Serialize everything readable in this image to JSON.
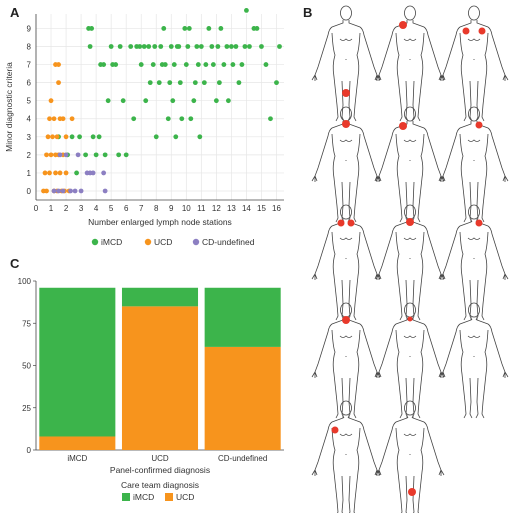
{
  "panels": {
    "a": "A",
    "b": "B",
    "c": "C"
  },
  "colors": {
    "imcd": "#3cb44b",
    "ucd": "#f7941d",
    "cd_undefined": "#8c7fc2",
    "body_outline": "#444444",
    "lesion": "#e8392b"
  },
  "chart_data": [
    {
      "panel": "A",
      "type": "scatter",
      "xlabel": "Number enlarged lymph node stations",
      "ylabel": "Minor diagnostic criteria",
      "xlim": [
        0,
        16.5
      ],
      "ylim": [
        -0.5,
        9.8
      ],
      "xticks": [
        "0",
        "1",
        "2",
        "3",
        "4",
        "5",
        "6",
        "7",
        "8",
        "9",
        "10",
        "11",
        "12",
        "13",
        "14",
        "15",
        "16"
      ],
      "yticks": [
        "0",
        "1",
        "2",
        "3",
        "4",
        "5",
        "6",
        "7",
        "8",
        "9"
      ],
      "grid": true,
      "legend_position": "bottom",
      "series": [
        {
          "name": "iMCD",
          "color": "#3cb44b",
          "points": [
            [
              1.5,
              3
            ],
            [
              2.1,
              2
            ],
            [
              2.4,
              3
            ],
            [
              2.7,
              1
            ],
            [
              2.9,
              3
            ],
            [
              3.3,
              2
            ],
            [
              3.5,
              9
            ],
            [
              3.7,
              9
            ],
            [
              3.6,
              8
            ],
            [
              3.8,
              3
            ],
            [
              4.0,
              2
            ],
            [
              4.2,
              3
            ],
            [
              4.3,
              7
            ],
            [
              4.5,
              7
            ],
            [
              4.6,
              2
            ],
            [
              4.8,
              5
            ],
            [
              5.0,
              8
            ],
            [
              5.1,
              7
            ],
            [
              5.3,
              7
            ],
            [
              5.5,
              2
            ],
            [
              5.6,
              8
            ],
            [
              5.8,
              5
            ],
            [
              6.0,
              2
            ],
            [
              6.3,
              8
            ],
            [
              6.5,
              4
            ],
            [
              6.7,
              8
            ],
            [
              6.9,
              8
            ],
            [
              7.0,
              7
            ],
            [
              7.2,
              8
            ],
            [
              7.3,
              5
            ],
            [
              7.5,
              8
            ],
            [
              7.6,
              6
            ],
            [
              7.8,
              7
            ],
            [
              7.9,
              8
            ],
            [
              8.0,
              3
            ],
            [
              8.2,
              6
            ],
            [
              8.3,
              8
            ],
            [
              8.4,
              7
            ],
            [
              8.5,
              9
            ],
            [
              8.6,
              7
            ],
            [
              8.8,
              4
            ],
            [
              8.9,
              6
            ],
            [
              9.0,
              8
            ],
            [
              9.1,
              5
            ],
            [
              9.2,
              7
            ],
            [
              9.3,
              3
            ],
            [
              9.4,
              8
            ],
            [
              9.5,
              8
            ],
            [
              9.6,
              6
            ],
            [
              9.7,
              4
            ],
            [
              9.9,
              9
            ],
            [
              10.0,
              7
            ],
            [
              10.1,
              8
            ],
            [
              10.2,
              9
            ],
            [
              10.3,
              4
            ],
            [
              10.5,
              5
            ],
            [
              10.6,
              6
            ],
            [
              10.7,
              8
            ],
            [
              10.8,
              7
            ],
            [
              10.9,
              3
            ],
            [
              11.0,
              8
            ],
            [
              11.2,
              6
            ],
            [
              11.3,
              7
            ],
            [
              11.5,
              9
            ],
            [
              11.7,
              8
            ],
            [
              11.8,
              7
            ],
            [
              12.0,
              5
            ],
            [
              12.1,
              8
            ],
            [
              12.2,
              6
            ],
            [
              12.3,
              9
            ],
            [
              12.5,
              7
            ],
            [
              12.7,
              8
            ],
            [
              12.8,
              5
            ],
            [
              13.0,
              8
            ],
            [
              13.1,
              7
            ],
            [
              13.3,
              8
            ],
            [
              13.5,
              6
            ],
            [
              13.7,
              7
            ],
            [
              13.9,
              8
            ],
            [
              14.0,
              10
            ],
            [
              14.2,
              8
            ],
            [
              14.5,
              9
            ],
            [
              14.7,
              9
            ],
            [
              15.0,
              8
            ],
            [
              15.3,
              7
            ],
            [
              15.6,
              4
            ],
            [
              16.0,
              6
            ],
            [
              16.2,
              8
            ]
          ]
        },
        {
          "name": "UCD",
          "color": "#f7941d",
          "points": [
            [
              0.5,
              0
            ],
            [
              0.6,
              1
            ],
            [
              0.7,
              2
            ],
            [
              0.8,
              3
            ],
            [
              0.9,
              4
            ],
            [
              0.7,
              0
            ],
            [
              0.9,
              1
            ],
            [
              1.0,
              2
            ],
            [
              1.0,
              5
            ],
            [
              1.1,
              3
            ],
            [
              1.2,
              0
            ],
            [
              1.2,
              4
            ],
            [
              1.3,
              1
            ],
            [
              1.3,
              2
            ],
            [
              1.3,
              7
            ],
            [
              1.4,
              0
            ],
            [
              1.4,
              3
            ],
            [
              1.5,
              6
            ],
            [
              1.5,
              2
            ],
            [
              1.5,
              7
            ],
            [
              1.6,
              4
            ],
            [
              1.6,
              1
            ],
            [
              1.7,
              0
            ],
            [
              1.8,
              4
            ],
            [
              1.8,
              2
            ],
            [
              1.9,
              0
            ],
            [
              2.0,
              1
            ],
            [
              2.0,
              3
            ],
            [
              2.2,
              0
            ],
            [
              2.4,
              4
            ]
          ]
        },
        {
          "name": "CD-undefined",
          "color": "#8c7fc2",
          "points": [
            [
              1.2,
              0
            ],
            [
              1.5,
              0
            ],
            [
              1.6,
              2
            ],
            [
              1.8,
              0
            ],
            [
              2.0,
              2
            ],
            [
              2.3,
              0
            ],
            [
              2.6,
              0
            ],
            [
              2.8,
              2
            ],
            [
              3.0,
              0
            ],
            [
              3.4,
              1
            ],
            [
              3.6,
              1
            ],
            [
              3.8,
              1
            ],
            [
              4.5,
              1
            ],
            [
              4.6,
              0
            ]
          ]
        }
      ],
      "legend": [
        "iMCD",
        "UCD",
        "CD-undefined"
      ]
    },
    {
      "panel": "C",
      "type": "bar",
      "stacked": true,
      "xlabel": "Panel-confirmed diagnosis",
      "ylabel": "",
      "ylim": [
        0,
        100
      ],
      "yticks": [
        "0",
        "25",
        "50",
        "75",
        "100"
      ],
      "categories": [
        "iMCD",
        "UCD",
        "CD-undefined"
      ],
      "series": [
        {
          "name": "UCD",
          "color": "#f7941d",
          "values": [
            8,
            85,
            61
          ]
        },
        {
          "name": "iMCD",
          "color": "#3cb44b",
          "values": [
            88,
            11,
            35
          ]
        }
      ],
      "legend_title": "Care team diagnosis",
      "legend": [
        "iMCD",
        "UCD"
      ],
      "legend_position": "bottom"
    }
  ],
  "panel_b": {
    "figures": [
      {
        "lesion": "groin"
      },
      {
        "lesion": "right-neck"
      },
      {
        "lesion": "both-axillae"
      },
      {
        "lesion": "neck-center"
      },
      {
        "lesion": "right-neck"
      },
      {
        "lesion": "neck-left"
      },
      {
        "lesion": "neck-bilateral"
      },
      {
        "lesion": "neck-center"
      },
      {
        "lesion": "neck-left"
      },
      {
        "lesion": "neck-center"
      },
      {
        "lesion": "neck-center-small"
      },
      {
        "lesion": "none"
      },
      {
        "lesion": "right-axilla"
      },
      {
        "lesion": "groin-left"
      }
    ]
  }
}
